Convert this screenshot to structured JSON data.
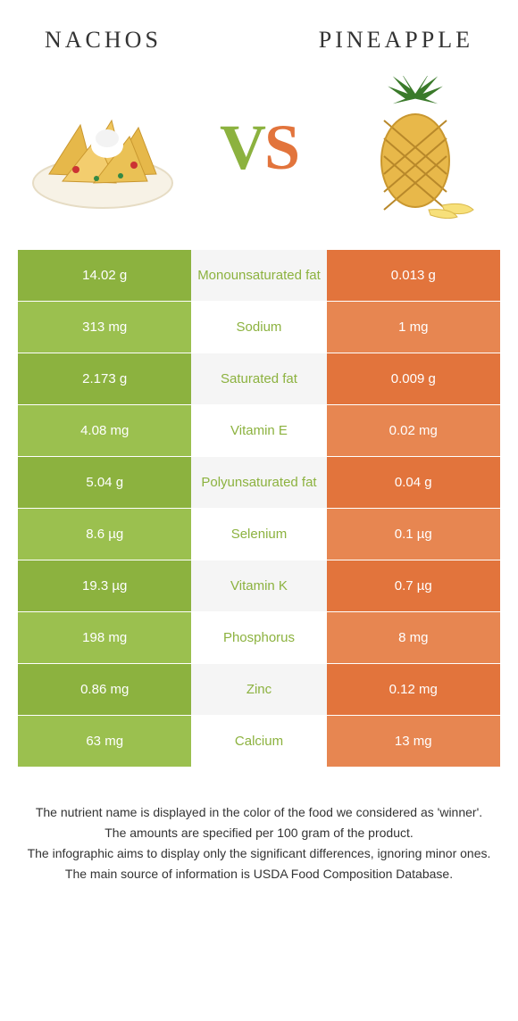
{
  "left_food": {
    "name": "NACHOS"
  },
  "right_food": {
    "name": "PINEAPPLE"
  },
  "vs": {
    "v": "V",
    "s": "S"
  },
  "colors": {
    "left": "#8cb23f",
    "left_light": "#9bc04f",
    "right": "#e2743c",
    "right_light": "#e78651"
  },
  "rows": [
    {
      "left": "14.02 g",
      "label": "Monounsaturated fat",
      "right": "0.013 g",
      "winner": "left"
    },
    {
      "left": "313 mg",
      "label": "Sodium",
      "right": "1 mg",
      "winner": "left"
    },
    {
      "left": "2.173 g",
      "label": "Saturated fat",
      "right": "0.009 g",
      "winner": "left"
    },
    {
      "left": "4.08 mg",
      "label": "Vitamin E",
      "right": "0.02 mg",
      "winner": "left"
    },
    {
      "left": "5.04 g",
      "label": "Polyunsaturated fat",
      "right": "0.04 g",
      "winner": "left"
    },
    {
      "left": "8.6 µg",
      "label": "Selenium",
      "right": "0.1 µg",
      "winner": "left"
    },
    {
      "left": "19.3 µg",
      "label": "Vitamin K",
      "right": "0.7 µg",
      "winner": "left"
    },
    {
      "left": "198 mg",
      "label": "Phosphorus",
      "right": "8 mg",
      "winner": "left"
    },
    {
      "left": "0.86 mg",
      "label": "Zinc",
      "right": "0.12 mg",
      "winner": "left"
    },
    {
      "left": "63 mg",
      "label": "Calcium",
      "right": "13 mg",
      "winner": "left"
    }
  ],
  "footer_lines": [
    "The nutrient name is displayed in the color of the food we considered as 'winner'.",
    "The amounts are specified per 100 gram of the product.",
    "The infographic aims to display only the significant differences, ignoring minor ones.",
    "The main source of information is USDA Food Composition Database."
  ]
}
